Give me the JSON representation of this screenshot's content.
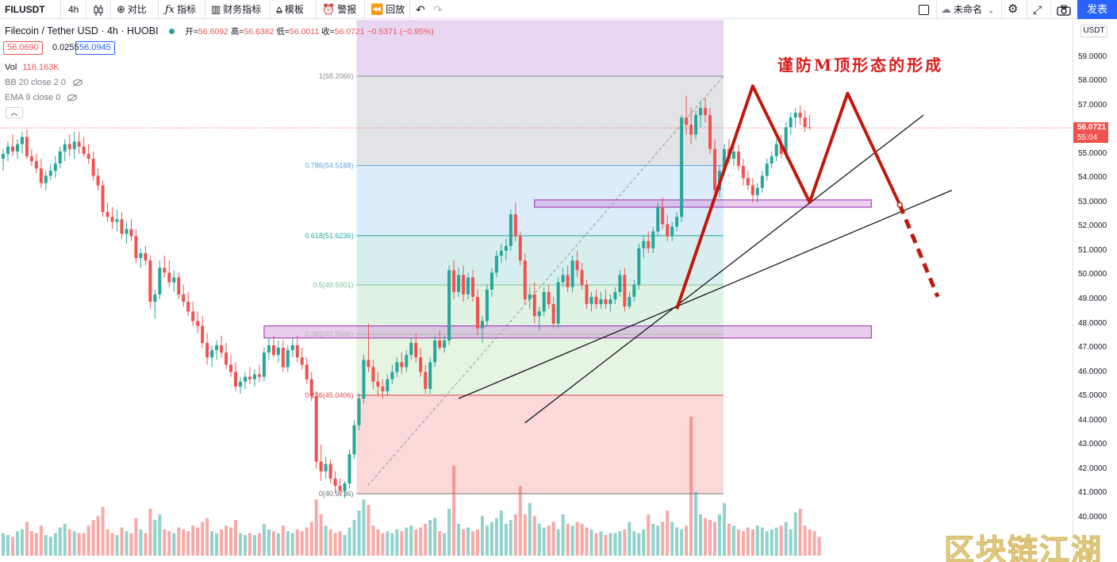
{
  "toolbar": {
    "symbol": "FILUSDT",
    "interval": "4h",
    "compare_label": "对比",
    "indicators_label": "指标",
    "financials_label": "财务指标",
    "templates_label": "模板",
    "alerts_label": "警报",
    "replay_label": "回放",
    "layout_name": "未命名",
    "publish_label": "发表"
  },
  "legend": {
    "title": "Filecoin / Tether USD · 4h · HUOBI",
    "open_label": "开=",
    "open": "56.6092",
    "high_label": "高=",
    "high": "56.6382",
    "low_label": "低=",
    "low": "56.0011",
    "close_label": "收=",
    "close": "56.0721",
    "change": "−0.5371 (−0.95%)",
    "bid": "56.0690",
    "spread": "0.0255",
    "ask": "56.0945",
    "vol_label": "Vol",
    "vol_value": "116.163K",
    "bb_label": "BB 20 close 2 0",
    "ema_label": "EMA 9 close 0"
  },
  "axis": {
    "currency": "USDT",
    "last_price": "56.0721",
    "countdown": "55:04"
  },
  "annotation": "谨防M顶形态的形成",
  "watermark": "区块链江湖",
  "colors": {
    "up": "#26a69a",
    "down": "#ef5350",
    "accent": "#2962ff",
    "pattern": "#c0180c"
  },
  "chart_data": {
    "type": "candlestick",
    "title": "Filecoin / Tether USD · 4h · HUOBI",
    "ylim": [
      39.0,
      60.2
    ],
    "y_ticks": [
      40.0,
      41.0,
      42.0,
      43.0,
      44.0,
      45.0,
      46.0,
      47.0,
      48.0,
      49.0,
      50.0,
      51.0,
      52.0,
      53.0,
      54.0,
      55.0,
      56.0,
      57.0,
      58.0,
      59.0
    ],
    "last_price": 56.0721,
    "fib_levels": [
      {
        "ratio": 1,
        "price": 58.2066,
        "label": "1(58.2066)"
      },
      {
        "ratio": 0.786,
        "price": 54.5188,
        "label": "0.786(54.5188)"
      },
      {
        "ratio": 0.618,
        "price": 51.6236,
        "label": "0.618(51.6236)"
      },
      {
        "ratio": 0.5,
        "price": 49.5901,
        "label": "0.5(49.5901)"
      },
      {
        "ratio": 0.382,
        "price": 47.5566,
        "label": "0.382(47.5566)"
      },
      {
        "ratio": 0.236,
        "price": 45.0406,
        "label": "0.236(45.0406)"
      },
      {
        "ratio": 0,
        "price": 40.9736,
        "label": "0(40.9736)"
      }
    ],
    "resistance_zones": [
      {
        "from_index": 112,
        "to_index": 183,
        "low": 52.8,
        "high": 53.1
      },
      {
        "from_index": 55,
        "to_index": 183,
        "low": 47.4,
        "high": 47.9
      }
    ],
    "m_top_pattern_prices": [
      48.6,
      57.8,
      53.0,
      57.5,
      52.9,
      49.1
    ],
    "candles": [
      [
        54.8,
        55.2,
        54.3,
        55.0
      ],
      [
        55.0,
        55.5,
        54.7,
        55.3
      ],
      [
        55.3,
        55.8,
        54.9,
        55.1
      ],
      [
        55.1,
        55.6,
        54.8,
        55.4
      ],
      [
        55.4,
        55.9,
        55.0,
        55.7
      ],
      [
        55.7,
        56.0,
        54.8,
        54.9
      ],
      [
        54.9,
        55.2,
        54.5,
        54.7
      ],
      [
        54.7,
        55.0,
        54.2,
        54.4
      ],
      [
        54.4,
        54.8,
        53.6,
        53.8
      ],
      [
        53.8,
        54.3,
        53.5,
        54.1
      ],
      [
        54.1,
        54.6,
        53.9,
        54.3
      ],
      [
        54.3,
        54.9,
        54.0,
        54.6
      ],
      [
        54.6,
        55.3,
        54.4,
        55.1
      ],
      [
        55.1,
        55.6,
        54.7,
        55.4
      ],
      [
        55.4,
        55.8,
        54.9,
        55.2
      ],
      [
        55.2,
        55.9,
        54.8,
        55.5
      ],
      [
        55.5,
        55.9,
        55.0,
        55.3
      ],
      [
        55.3,
        55.7,
        54.9,
        55.0
      ],
      [
        55.0,
        55.4,
        54.6,
        54.8
      ],
      [
        54.8,
        55.1,
        53.9,
        54.1
      ],
      [
        54.1,
        54.4,
        53.5,
        53.7
      ],
      [
        53.7,
        53.9,
        52.4,
        52.6
      ],
      [
        52.6,
        53.0,
        52.2,
        52.4
      ],
      [
        52.4,
        52.8,
        51.9,
        52.2
      ],
      [
        52.2,
        52.7,
        51.8,
        52.3
      ],
      [
        52.3,
        52.6,
        51.5,
        51.7
      ],
      [
        51.7,
        52.2,
        51.3,
        51.9
      ],
      [
        51.9,
        52.3,
        51.4,
        51.6
      ],
      [
        51.6,
        51.9,
        50.5,
        50.7
      ],
      [
        50.7,
        51.1,
        50.3,
        50.9
      ],
      [
        50.9,
        51.2,
        50.4,
        50.6
      ],
      [
        50.6,
        50.8,
        48.6,
        48.9
      ],
      [
        48.9,
        49.4,
        48.2,
        49.2
      ],
      [
        49.2,
        50.6,
        49.0,
        50.3
      ],
      [
        50.3,
        50.8,
        49.9,
        50.1
      ],
      [
        50.1,
        50.6,
        49.5,
        49.7
      ],
      [
        49.7,
        50.2,
        49.3,
        49.9
      ],
      [
        49.9,
        50.1,
        49.0,
        49.2
      ],
      [
        49.2,
        49.6,
        48.7,
        48.9
      ],
      [
        48.9,
        49.3,
        48.3,
        48.5
      ],
      [
        48.5,
        48.9,
        47.9,
        48.1
      ],
      [
        48.1,
        48.5,
        47.6,
        47.9
      ],
      [
        47.9,
        48.3,
        47.0,
        47.2
      ],
      [
        47.2,
        47.6,
        46.3,
        46.6
      ],
      [
        46.6,
        47.1,
        46.2,
        46.9
      ],
      [
        46.9,
        47.3,
        46.5,
        47.1
      ],
      [
        47.1,
        47.5,
        46.6,
        46.8
      ],
      [
        46.8,
        47.2,
        46.1,
        46.3
      ],
      [
        46.3,
        46.7,
        45.8,
        46.0
      ],
      [
        46.0,
        46.4,
        45.2,
        45.4
      ],
      [
        45.4,
        45.8,
        45.1,
        45.6
      ],
      [
        45.6,
        46.0,
        45.3,
        45.8
      ],
      [
        45.8,
        46.2,
        45.5,
        45.7
      ],
      [
        45.7,
        46.1,
        45.4,
        45.9
      ],
      [
        45.9,
        46.3,
        45.6,
        45.8
      ],
      [
        45.8,
        47.0,
        45.6,
        46.8
      ],
      [
        46.8,
        47.4,
        46.5,
        47.1
      ],
      [
        47.1,
        47.5,
        46.6,
        46.7
      ],
      [
        46.7,
        47.3,
        46.4,
        47.0
      ],
      [
        47.0,
        47.3,
        46.0,
        46.2
      ],
      [
        46.2,
        47.1,
        46.0,
        46.9
      ],
      [
        46.9,
        47.4,
        46.6,
        47.1
      ],
      [
        47.1,
        47.5,
        46.4,
        46.6
      ],
      [
        46.6,
        47.0,
        46.1,
        46.3
      ],
      [
        46.3,
        46.6,
        45.5,
        45.7
      ],
      [
        45.7,
        46.0,
        44.8,
        45.0
      ],
      [
        45.0,
        45.2,
        42.0,
        42.3
      ],
      [
        42.3,
        43.0,
        41.5,
        41.9
      ],
      [
        41.9,
        42.5,
        41.6,
        42.2
      ],
      [
        42.2,
        42.4,
        41.4,
        41.6
      ],
      [
        41.6,
        41.9,
        41.0,
        41.3
      ],
      [
        41.3,
        41.6,
        40.9,
        41.1
      ],
      [
        41.1,
        41.5,
        40.8,
        41.4
      ],
      [
        41.4,
        42.8,
        41.2,
        42.6
      ],
      [
        42.6,
        44.0,
        42.4,
        43.8
      ],
      [
        43.8,
        45.1,
        43.6,
        44.9
      ],
      [
        44.9,
        46.7,
        44.7,
        46.5
      ],
      [
        46.5,
        48.0,
        46.0,
        46.2
      ],
      [
        46.2,
        46.5,
        45.3,
        45.6
      ],
      [
        45.6,
        46.0,
        45.0,
        45.4
      ],
      [
        45.4,
        45.7,
        44.9,
        45.2
      ],
      [
        45.2,
        45.9,
        45.0,
        45.7
      ],
      [
        45.7,
        46.3,
        45.5,
        46.0
      ],
      [
        46.0,
        46.6,
        45.8,
        46.4
      ],
      [
        46.4,
        46.8,
        45.9,
        46.2
      ],
      [
        46.2,
        46.9,
        46.0,
        46.7
      ],
      [
        46.7,
        47.4,
        46.5,
        47.2
      ],
      [
        47.2,
        47.6,
        46.4,
        46.6
      ],
      [
        46.6,
        47.0,
        45.8,
        46.0
      ],
      [
        46.0,
        46.3,
        45.1,
        45.3
      ],
      [
        45.3,
        46.6,
        45.1,
        46.4
      ],
      [
        46.4,
        47.5,
        46.2,
        47.3
      ],
      [
        47.3,
        47.7,
        46.9,
        47.0
      ],
      [
        47.0,
        47.5,
        46.8,
        47.3
      ],
      [
        47.3,
        50.4,
        47.1,
        50.2
      ],
      [
        50.2,
        50.6,
        49.0,
        49.3
      ],
      [
        49.3,
        50.3,
        49.1,
        50.0
      ],
      [
        50.0,
        50.4,
        48.9,
        49.2
      ],
      [
        49.2,
        50.1,
        49.0,
        49.9
      ],
      [
        49.9,
        50.2,
        48.9,
        49.1
      ],
      [
        49.1,
        49.4,
        47.5,
        47.8
      ],
      [
        47.8,
        48.3,
        47.2,
        48.1
      ],
      [
        48.1,
        49.6,
        47.9,
        49.4
      ],
      [
        49.4,
        50.3,
        49.1,
        50.1
      ],
      [
        50.1,
        51.0,
        49.9,
        50.8
      ],
      [
        50.8,
        51.3,
        50.5,
        51.0
      ],
      [
        51.0,
        51.5,
        50.6,
        51.2
      ],
      [
        51.2,
        52.7,
        51.0,
        52.5
      ],
      [
        52.5,
        53.0,
        51.4,
        51.6
      ],
      [
        51.6,
        51.8,
        50.4,
        50.6
      ],
      [
        50.6,
        50.9,
        48.8,
        49.0
      ],
      [
        49.0,
        49.5,
        48.6,
        49.2
      ],
      [
        49.2,
        49.7,
        48.0,
        48.3
      ],
      [
        48.3,
        48.7,
        47.7,
        48.5
      ],
      [
        48.5,
        49.5,
        48.3,
        49.3
      ],
      [
        49.3,
        49.6,
        48.6,
        48.8
      ],
      [
        48.8,
        49.1,
        47.8,
        48.0
      ],
      [
        48.0,
        49.9,
        47.8,
        49.7
      ],
      [
        49.7,
        50.3,
        49.5,
        50.0
      ],
      [
        50.0,
        50.4,
        49.3,
        49.5
      ],
      [
        49.5,
        50.8,
        49.3,
        50.6
      ],
      [
        50.6,
        51.0,
        49.9,
        50.2
      ],
      [
        50.2,
        50.5,
        49.4,
        49.6
      ],
      [
        49.6,
        49.8,
        48.6,
        48.8
      ],
      [
        48.8,
        49.3,
        48.5,
        49.1
      ],
      [
        49.1,
        49.4,
        48.6,
        48.8
      ],
      [
        48.8,
        49.3,
        48.6,
        49.0
      ],
      [
        49.0,
        49.4,
        48.6,
        48.8
      ],
      [
        48.8,
        49.2,
        48.5,
        49.0
      ],
      [
        49.0,
        49.5,
        48.8,
        49.3
      ],
      [
        49.3,
        50.2,
        49.1,
        50.0
      ],
      [
        50.0,
        50.3,
        48.5,
        48.7
      ],
      [
        48.7,
        49.3,
        48.6,
        49.1
      ],
      [
        49.1,
        49.8,
        48.9,
        49.6
      ],
      [
        49.6,
        51.3,
        49.4,
        51.1
      ],
      [
        51.1,
        51.6,
        50.7,
        51.4
      ],
      [
        51.4,
        51.8,
        50.9,
        51.1
      ],
      [
        51.1,
        52.0,
        50.9,
        51.8
      ],
      [
        51.8,
        53.0,
        51.6,
        52.8
      ],
      [
        52.8,
        53.2,
        51.9,
        52.1
      ],
      [
        52.1,
        52.5,
        51.4,
        51.6
      ],
      [
        51.6,
        52.2,
        51.4,
        52.0
      ],
      [
        52.0,
        52.6,
        51.8,
        52.4
      ],
      [
        52.4,
        56.6,
        52.2,
        56.5
      ],
      [
        56.5,
        57.4,
        55.8,
        56.2
      ],
      [
        56.2,
        56.9,
        55.4,
        55.8
      ],
      [
        55.8,
        56.8,
        55.6,
        56.6
      ],
      [
        56.6,
        57.2,
        56.1,
        56.9
      ],
      [
        56.9,
        57.3,
        56.3,
        56.6
      ],
      [
        56.6,
        56.9,
        55.0,
        55.2
      ],
      [
        55.2,
        55.6,
        53.1,
        53.5
      ],
      [
        53.5,
        54.5,
        53.2,
        54.3
      ],
      [
        54.3,
        55.4,
        54.1,
        55.2
      ],
      [
        55.2,
        55.6,
        54.6,
        54.8
      ],
      [
        54.8,
        55.3,
        54.5,
        55.1
      ],
      [
        55.1,
        55.4,
        54.3,
        54.5
      ],
      [
        54.5,
        54.8,
        53.7,
        54.0
      ],
      [
        54.0,
        54.3,
        53.5,
        53.7
      ],
      [
        53.7,
        54.0,
        53.0,
        53.3
      ],
      [
        53.3,
        53.8,
        53.0,
        53.6
      ],
      [
        53.6,
        54.3,
        53.4,
        54.1
      ],
      [
        54.1,
        54.8,
        53.9,
        54.6
      ],
      [
        54.6,
        55.1,
        54.4,
        54.9
      ],
      [
        54.9,
        55.6,
        54.7,
        55.4
      ],
      [
        55.4,
        55.8,
        54.8,
        55.0
      ],
      [
        55.0,
        56.3,
        54.8,
        56.1
      ],
      [
        56.1,
        56.7,
        55.8,
        56.5
      ],
      [
        56.5,
        56.9,
        56.1,
        56.7
      ],
      [
        56.7,
        57.0,
        56.2,
        56.5
      ],
      [
        56.5,
        56.8,
        55.9,
        56.1
      ],
      [
        56.1,
        56.6,
        56.0,
        56.07
      ]
    ],
    "volumes": [
      12,
      11,
      10,
      13,
      14,
      18,
      13,
      12,
      16,
      11,
      10,
      12,
      15,
      17,
      14,
      13,
      12,
      12,
      16,
      19,
      21,
      26,
      14,
      12,
      11,
      15,
      13,
      12,
      20,
      14,
      12,
      25,
      19,
      22,
      14,
      13,
      12,
      15,
      14,
      13,
      16,
      15,
      18,
      20,
      13,
      12,
      14,
      16,
      15,
      19,
      12,
      11,
      12,
      11,
      12,
      17,
      14,
      13,
      12,
      16,
      13,
      12,
      14,
      13,
      15,
      18,
      30,
      22,
      16,
      14,
      12,
      13,
      11,
      15,
      19,
      24,
      30,
      27,
      16,
      14,
      12,
      13,
      12,
      14,
      13,
      15,
      16,
      14,
      15,
      17,
      19,
      20,
      13,
      12,
      25,
      48,
      17,
      14,
      15,
      13,
      14,
      21,
      16,
      18,
      20,
      24,
      17,
      19,
      22,
      37,
      22,
      28,
      21,
      17,
      15,
      16,
      18,
      14,
      22,
      17,
      16,
      18,
      17,
      15,
      14,
      12,
      13,
      11,
      12,
      12,
      13,
      14,
      18,
      13,
      12,
      14,
      22,
      17,
      16,
      18,
      24,
      18,
      15,
      14,
      16,
      74,
      34,
      22,
      20,
      19,
      18,
      22,
      28,
      17,
      16,
      14,
      13,
      15,
      14,
      16,
      15,
      13,
      14,
      15,
      16,
      18,
      14,
      23,
      25,
      16,
      14,
      13,
      10
    ]
  }
}
